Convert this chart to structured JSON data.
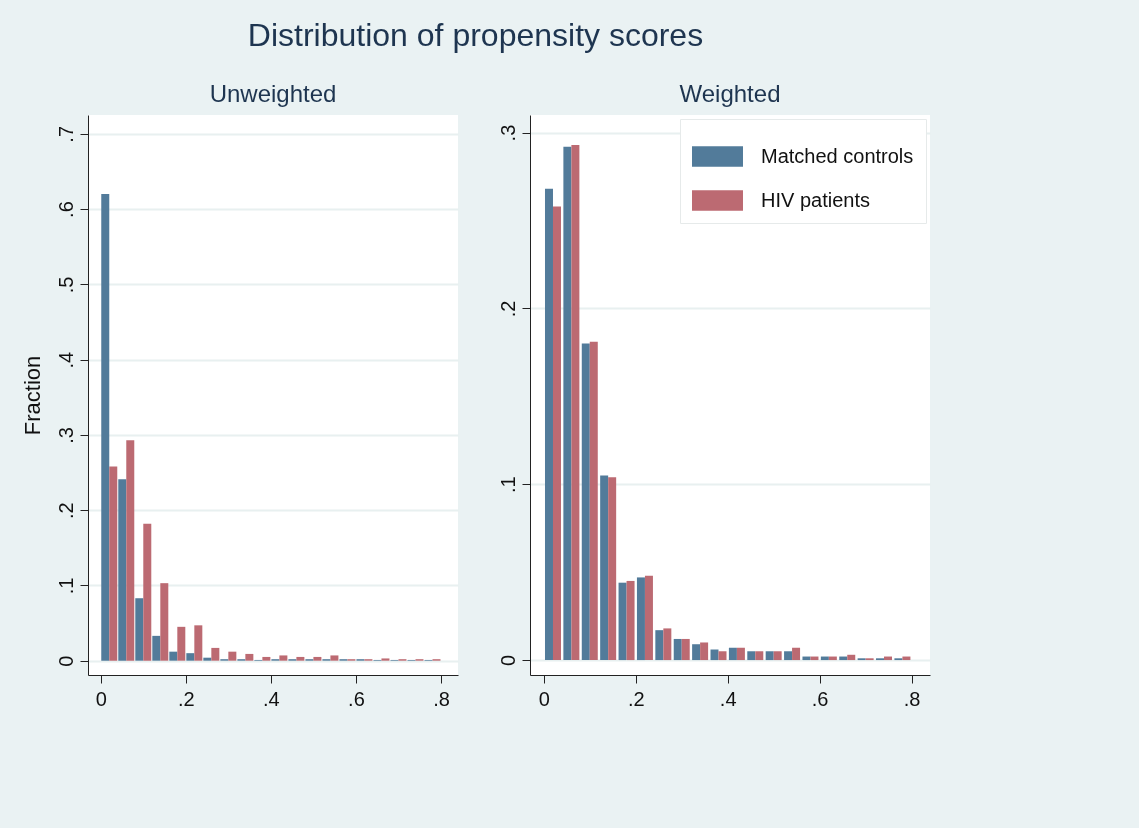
{
  "chart_data": [
    {
      "type": "bar",
      "title": "Distribution of propensity scores",
      "subtitle": "Unweighted",
      "ylabel": "Fraction",
      "x": [
        0.02,
        0.06,
        0.1,
        0.14,
        0.18,
        0.22,
        0.26,
        0.3,
        0.34,
        0.38,
        0.42,
        0.46,
        0.5,
        0.54,
        0.58,
        0.62,
        0.66,
        0.7,
        0.74,
        0.78
      ],
      "series": [
        {
          "color": "#527b9a",
          "values": [
            0.62,
            0.241,
            0.083,
            0.033,
            0.012,
            0.01,
            0.004,
            0.002,
            0.002,
            0.001,
            0.002,
            0.002,
            0.002,
            0.002,
            0.002,
            0.002,
            0.001,
            0.001,
            0.001,
            0.001
          ]
        },
        {
          "color": "#bc6a72",
          "values": [
            0.258,
            0.293,
            0.182,
            0.103,
            0.045,
            0.047,
            0.017,
            0.012,
            0.009,
            0.005,
            0.007,
            0.005,
            0.005,
            0.007,
            0.002,
            0.002,
            0.003,
            0.002,
            0.002,
            0.002
          ]
        }
      ],
      "xlim": [
        -0.03,
        0.84
      ],
      "xticks": [
        0,
        {
          "value": 0.2,
          "label": ".2"
        },
        {
          "value": 0.4,
          "label": ".4"
        },
        {
          "value": 0.6,
          "label": ".6"
        },
        {
          "value": 0.8,
          "label": ".8"
        }
      ],
      "ylim": [
        -0.019,
        0.725
      ],
      "yticks": [
        0,
        {
          "value": 0.1,
          "label": ".1"
        },
        {
          "value": 0.2,
          "label": ".2"
        },
        {
          "value": 0.3,
          "label": ".3"
        },
        {
          "value": 0.4,
          "label": ".4"
        },
        {
          "value": 0.5,
          "label": ".5"
        },
        {
          "value": 0.6,
          "label": ".6"
        },
        {
          "value": 0.7,
          "label": ".7"
        }
      ],
      "grid": "y"
    },
    {
      "type": "bar",
      "subtitle": "Weighted",
      "x": [
        0.02,
        0.06,
        0.1,
        0.14,
        0.18,
        0.22,
        0.26,
        0.3,
        0.34,
        0.38,
        0.42,
        0.46,
        0.5,
        0.54,
        0.58,
        0.62,
        0.66,
        0.7,
        0.74,
        0.78
      ],
      "series": [
        {
          "name": "Matched controls",
          "color": "#527b9a",
          "values": [
            0.268,
            0.292,
            0.18,
            0.105,
            0.044,
            0.047,
            0.017,
            0.012,
            0.009,
            0.006,
            0.007,
            0.005,
            0.005,
            0.005,
            0.002,
            0.002,
            0.002,
            0.001,
            0.001,
            0.001
          ]
        },
        {
          "name": "HIV patients",
          "color": "#bc6a72",
          "values": [
            0.258,
            0.293,
            0.181,
            0.104,
            0.045,
            0.048,
            0.018,
            0.012,
            0.01,
            0.005,
            0.007,
            0.005,
            0.005,
            0.007,
            0.002,
            0.002,
            0.003,
            0.001,
            0.002,
            0.002
          ]
        }
      ],
      "xlim": [
        -0.03,
        0.84
      ],
      "xticks": [
        0,
        {
          "value": 0.2,
          "label": ".2"
        },
        {
          "value": 0.4,
          "label": ".4"
        },
        {
          "value": 0.6,
          "label": ".6"
        },
        {
          "value": 0.8,
          "label": ".8"
        }
      ],
      "ylim": [
        -0.0085,
        0.31
      ],
      "yticks": [
        0,
        {
          "value": 0.1,
          "label": ".1"
        },
        {
          "value": 0.2,
          "label": ".2"
        },
        {
          "value": 0.3,
          "label": ".3"
        }
      ],
      "grid": "y",
      "legend": "top right"
    }
  ]
}
